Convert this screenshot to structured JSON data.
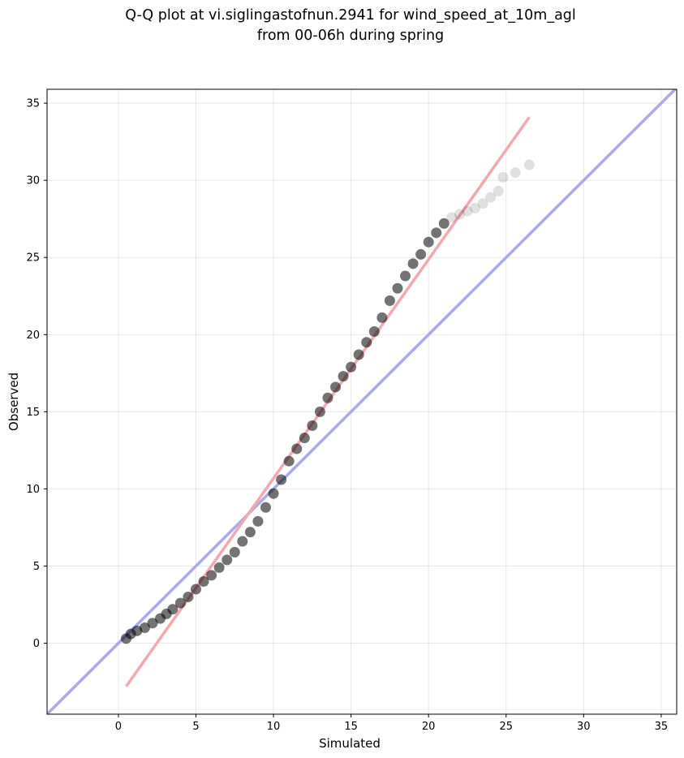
{
  "chart_data": {
    "type": "scatter",
    "title_line1": "Q-Q plot at vi.siglingastofnun.2941 for wind_speed_at_10m_agl",
    "title_line2": "from 00-06h during spring",
    "xlabel": "Simulated",
    "ylabel": "Observed",
    "xlim": [
      -4.6,
      36
    ],
    "ylim": [
      -4.6,
      35.9
    ],
    "xticks": [
      "0",
      "5",
      "10",
      "15",
      "20",
      "25",
      "30",
      "35"
    ],
    "yticks": [
      "0",
      "5",
      "10",
      "15",
      "20",
      "25",
      "30",
      "35"
    ],
    "grid": true,
    "reference_line": {
      "x": [
        -4.6,
        36
      ],
      "y": [
        -4.6,
        36
      ],
      "color": "#aaaaf0"
    },
    "fit_line": {
      "x": [
        0.5,
        26.5
      ],
      "y": [
        -2.8,
        34.1
      ],
      "color": "#f6a9ad"
    },
    "series": [
      {
        "color": "#000000",
        "points": [
          [
            0.5,
            0.3
          ],
          [
            0.8,
            0.6
          ],
          [
            1.2,
            0.8
          ],
          [
            1.7,
            1.0
          ],
          [
            2.2,
            1.3
          ],
          [
            2.7,
            1.6
          ],
          [
            3.1,
            1.9
          ],
          [
            3.5,
            2.2
          ],
          [
            4.0,
            2.6
          ],
          [
            4.5,
            3.0
          ],
          [
            5.0,
            3.5
          ],
          [
            5.5,
            4.0
          ],
          [
            6.0,
            4.4
          ],
          [
            6.5,
            4.9
          ],
          [
            7.0,
            5.4
          ],
          [
            7.5,
            5.9
          ],
          [
            8.0,
            6.6
          ],
          [
            8.5,
            7.2
          ],
          [
            9.0,
            7.9
          ],
          [
            9.5,
            8.8
          ],
          [
            10.0,
            9.7
          ],
          [
            10.5,
            10.6
          ],
          [
            11.0,
            11.8
          ],
          [
            11.5,
            12.6
          ],
          [
            12.0,
            13.3
          ],
          [
            12.5,
            14.1
          ],
          [
            13.0,
            15.0
          ],
          [
            13.5,
            15.9
          ],
          [
            14.0,
            16.6
          ],
          [
            14.5,
            17.3
          ],
          [
            15.0,
            17.9
          ],
          [
            15.5,
            18.7
          ],
          [
            16.0,
            19.5
          ],
          [
            16.5,
            20.2
          ],
          [
            17.0,
            21.1
          ],
          [
            17.5,
            22.2
          ],
          [
            18.0,
            23.0
          ],
          [
            18.5,
            23.8
          ],
          [
            19.0,
            24.6
          ],
          [
            19.5,
            25.2
          ],
          [
            20.0,
            26.0
          ],
          [
            20.5,
            26.6
          ],
          [
            21.0,
            27.2
          ],
          [
            21.5,
            27.6
          ],
          [
            22.0,
            27.8
          ],
          [
            22.5,
            28.0
          ],
          [
            23.0,
            28.2
          ],
          [
            23.5,
            28.5
          ],
          [
            24.0,
            28.9
          ],
          [
            24.5,
            29.3
          ],
          [
            24.8,
            30.2
          ],
          [
            25.6,
            30.5
          ],
          [
            26.5,
            31.0
          ]
        ]
      }
    ]
  }
}
